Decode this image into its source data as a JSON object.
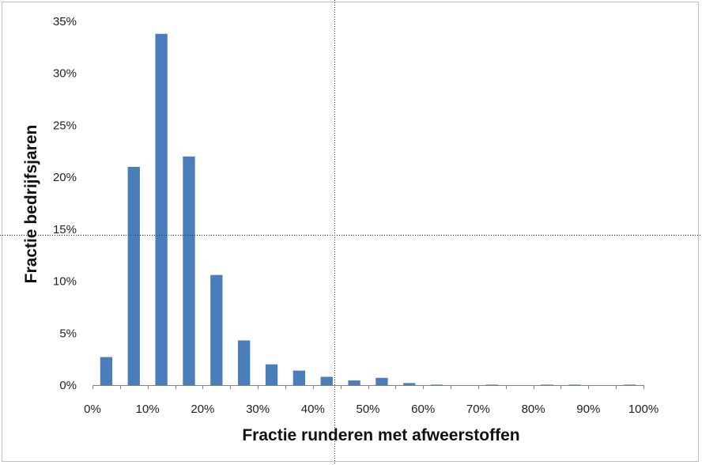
{
  "chart_data": {
    "type": "bar",
    "xlabel": "Fractie runderen met afweerstoffen",
    "ylabel": "Fractie bedrijfsjaren",
    "x_ticks": [
      "0%",
      "10%",
      "20%",
      "30%",
      "40%",
      "50%",
      "60%",
      "70%",
      "80%",
      "90%",
      "100%"
    ],
    "y_ticks": [
      "0%",
      "5%",
      "10%",
      "15%",
      "20%",
      "25%",
      "30%",
      "35%"
    ],
    "xlim": [
      0,
      100
    ],
    "ylim": [
      0,
      35
    ],
    "bin_centers": [
      2.5,
      7.5,
      12.5,
      17.5,
      22.5,
      27.5,
      32.5,
      37.5,
      42.5,
      47.5,
      52.5,
      57.5,
      62.5,
      67.5,
      72.5,
      77.5,
      82.5,
      87.5,
      92.5,
      97.5
    ],
    "values": [
      2.7,
      21.0,
      33.8,
      22.0,
      10.6,
      4.3,
      2.0,
      1.4,
      0.8,
      0.45,
      0.7,
      0.2,
      0.05,
      0.0,
      0.05,
      0.0,
      0.05,
      0.05,
      0.0,
      0.05
    ],
    "bar_color": "#4a7ebb",
    "grid": false,
    "legend": "none"
  }
}
